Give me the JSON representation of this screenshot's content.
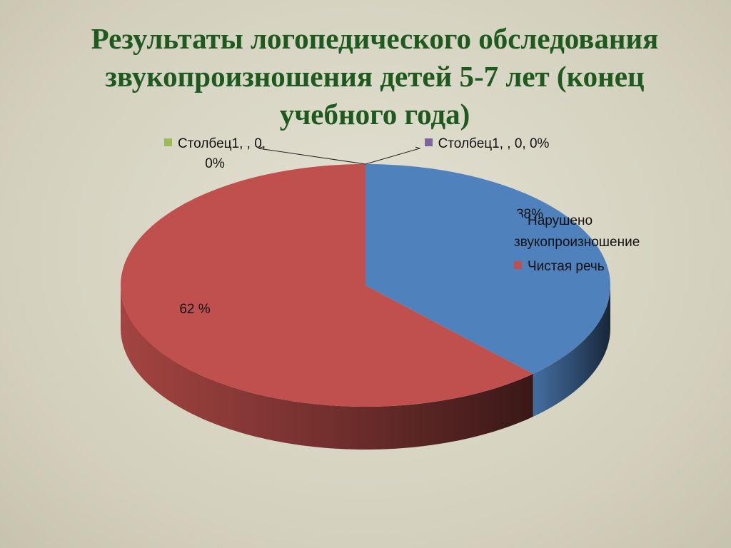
{
  "chart_data": {
    "type": "pie3d",
    "title": "Результаты логопедического обследования звукопроизношения  детей 5-7 лет (конец учебного года)",
    "categories": [
      "Нарушено звукопроизношение",
      "Чистая речь",
      null,
      null
    ],
    "values": [
      38,
      62,
      0,
      0
    ],
    "value_labels": [
      "38%",
      "62 %",
      "Столбец1, , 0, 0%",
      "Столбец1, , 0, 0%"
    ],
    "colors": [
      "#4f81bd",
      "#c0504d",
      "#9bbb59",
      "#8064a2"
    ],
    "legend": "right"
  }
}
